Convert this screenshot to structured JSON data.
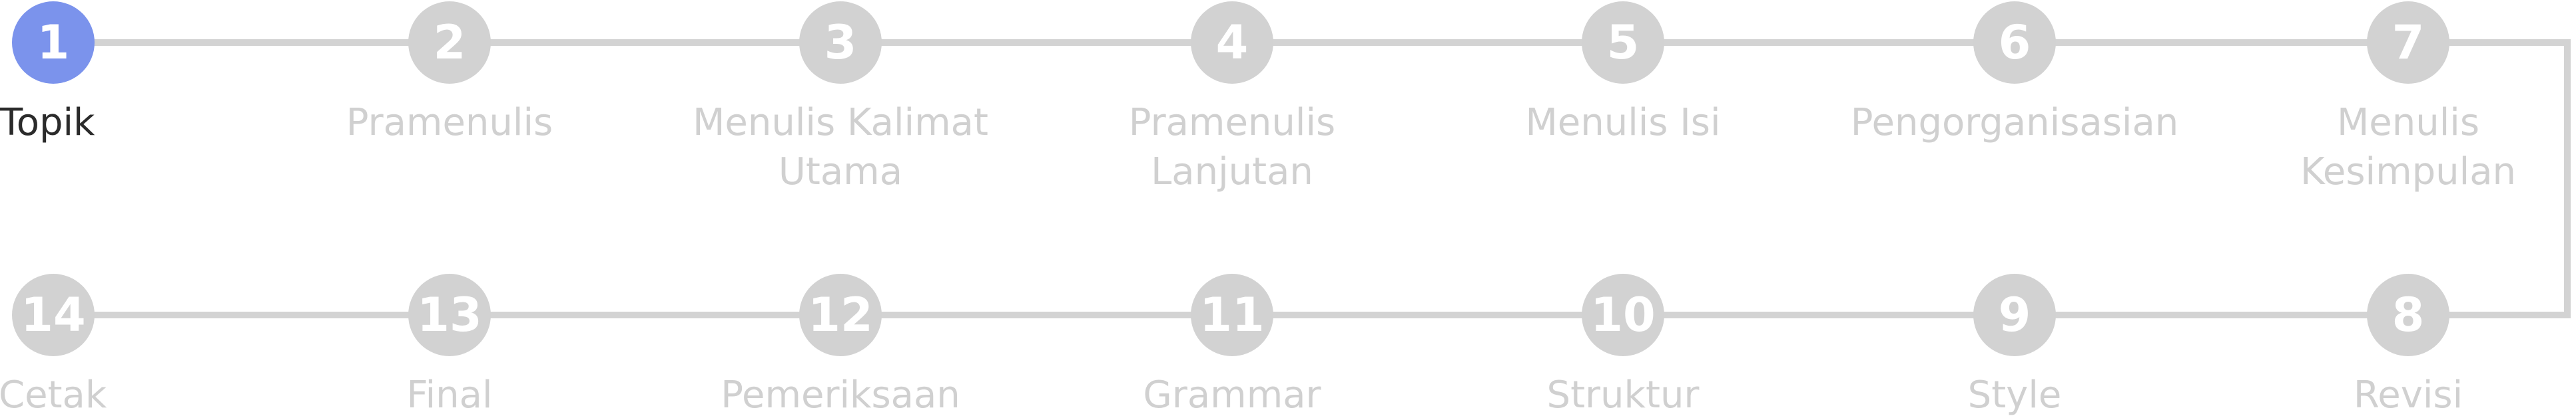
{
  "stepper": {
    "active_step": 1,
    "colors": {
      "active": "#7b93ec",
      "inactive_circle": "#d2d2d2",
      "inactive_label": "#d0d0d0",
      "active_label": "#2b2b2b",
      "connector": "#d3d3d3"
    },
    "steps": [
      {
        "number": "1",
        "label": "Topik"
      },
      {
        "number": "2",
        "label": "Pramenulis"
      },
      {
        "number": "3",
        "label": "Menulis Kalimat Utama"
      },
      {
        "number": "4",
        "label": "Pramenulis Lanjutan"
      },
      {
        "number": "5",
        "label": "Menulis Isi"
      },
      {
        "number": "6",
        "label": "Pengorganisasian"
      },
      {
        "number": "7",
        "label": "Menulis Kesimpulan"
      },
      {
        "number": "8",
        "label": "Revisi"
      },
      {
        "number": "9",
        "label": "Style"
      },
      {
        "number": "10",
        "label": "Struktur"
      },
      {
        "number": "11",
        "label": "Grammar"
      },
      {
        "number": "12",
        "label": "Pemeriksaan"
      },
      {
        "number": "13",
        "label": "Final"
      },
      {
        "number": "14",
        "label": "Cetak"
      }
    ]
  }
}
